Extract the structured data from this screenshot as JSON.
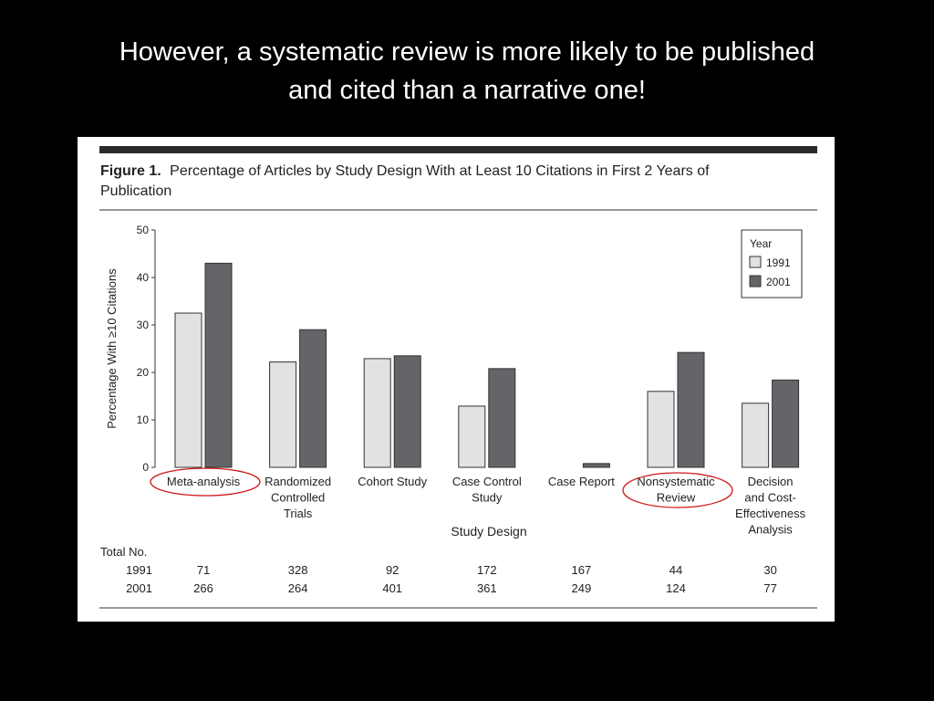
{
  "slide": {
    "title_line1": "However, a systematic review is more likely to be published",
    "title_line2": "and cited than a narrative one!"
  },
  "figure": {
    "label": "Figure 1.",
    "caption_line1": "Percentage of Articles by Study Design With at Least 10 Citations in First 2 Years of",
    "caption_line2": "Publication"
  },
  "colors": {
    "slide_background": "#000000",
    "bar_1991": "#e2e2e2",
    "bar_2001": "#646469",
    "highlight_circle": "#d01818"
  },
  "chart_data": {
    "type": "bar",
    "title": "Percentage of Articles by Study Design With at Least 10 Citations in First 2 Years of Publication",
    "xlabel": "Study Design",
    "ylabel": "Percentage With ≥10 Citations",
    "ylim": [
      0,
      50
    ],
    "yticks": [
      0,
      10,
      20,
      30,
      40,
      50
    ],
    "grid": false,
    "legend": {
      "title": "Year",
      "placement": "top-right"
    },
    "categories": [
      [
        "Meta-analysis"
      ],
      [
        "Randomized",
        "Controlled",
        "Trials"
      ],
      [
        "Cohort Study"
      ],
      [
        "Case Control",
        "Study"
      ],
      [
        "Case Report"
      ],
      [
        "Nonsystematic",
        "Review"
      ],
      [
        "Decision",
        "and Cost-",
        "Effectiveness",
        "Analysis"
      ]
    ],
    "highlighted_categories": [
      "Meta-analysis",
      "Nonsystematic Review"
    ],
    "series": [
      {
        "name": "1991",
        "values": [
          32.5,
          22.2,
          22.9,
          12.9,
          0,
          16.0,
          13.5
        ]
      },
      {
        "name": "2001",
        "values": [
          43.0,
          29.0,
          23.5,
          20.8,
          0.8,
          24.2,
          18.4
        ]
      }
    ],
    "totals_table": {
      "header": "Total No.",
      "rows": [
        {
          "label": "1991",
          "values": [
            "71",
            "328",
            "92",
            "172",
            "167",
            "44",
            "30"
          ]
        },
        {
          "label": "2001",
          "values": [
            "266",
            "264",
            "401",
            "361",
            "249",
            "124",
            "77"
          ]
        }
      ]
    }
  }
}
